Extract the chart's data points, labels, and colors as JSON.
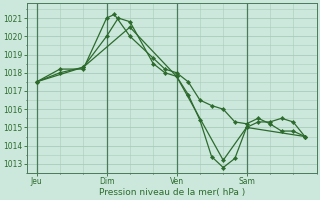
{
  "bg_color": "#cce8dc",
  "grid_color": "#aaccbb",
  "line_color": "#2d6b2d",
  "xlabel": "Pression niveau de la mer( hPa )",
  "ylim": [
    1012.5,
    1021.8
  ],
  "yticks": [
    1013,
    1014,
    1015,
    1016,
    1017,
    1018,
    1019,
    1020,
    1021
  ],
  "xtick_labels": [
    "Jeu",
    "Dim",
    "Ven",
    "Sam"
  ],
  "xtick_positions": [
    0,
    36,
    72,
    108
  ],
  "xmin": -5,
  "xmax": 144,
  "line1_x": [
    0,
    12,
    24,
    36,
    42,
    48,
    60,
    66,
    72,
    78,
    84,
    90,
    96,
    102,
    108,
    114,
    120,
    126,
    132,
    138
  ],
  "line1_y": [
    1017.5,
    1018.0,
    1018.3,
    1020.0,
    1021.0,
    1020.8,
    1018.5,
    1018.0,
    1017.8,
    1016.8,
    1015.4,
    1013.4,
    1012.8,
    1013.3,
    1015.0,
    1015.3,
    1015.3,
    1015.5,
    1015.3,
    1014.5
  ],
  "line2_x": [
    0,
    12,
    24,
    36,
    40,
    48,
    60,
    66,
    72,
    78,
    84,
    90,
    96,
    102,
    108,
    114,
    120,
    126,
    132,
    138
  ],
  "line2_y": [
    1017.5,
    1018.2,
    1018.2,
    1021.0,
    1021.2,
    1020.0,
    1018.8,
    1018.2,
    1018.0,
    1017.5,
    1016.5,
    1016.2,
    1016.0,
    1015.3,
    1015.2,
    1015.5,
    1015.2,
    1014.8,
    1014.8,
    1014.5
  ],
  "line3_x": [
    0,
    24,
    48,
    72,
    96,
    108,
    138
  ],
  "line3_y": [
    1017.5,
    1018.3,
    1020.5,
    1017.8,
    1013.2,
    1015.0,
    1014.5
  ],
  "vline_positions": [
    0,
    36,
    72,
    108
  ]
}
